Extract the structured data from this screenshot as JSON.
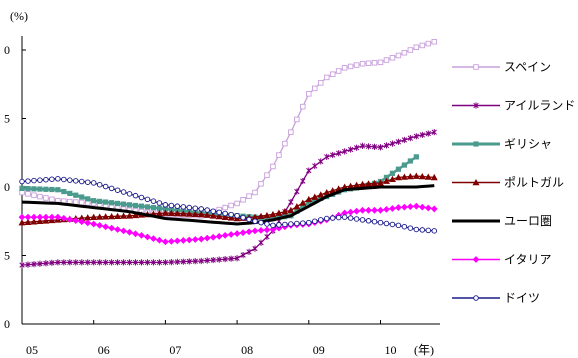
{
  "chart_data": {
    "type": "line",
    "y_unit_label": "(%)",
    "x_unit_label": "(年)",
    "x_ticks": [
      "05",
      "06",
      "07",
      "08",
      "09",
      "10"
    ],
    "y_ticks": [
      "0",
      "5",
      "0",
      "5",
      "0"
    ],
    "x_range": [
      2005.0,
      2010.83
    ],
    "ylim": [
      0,
      20
    ],
    "y_tick_values": [
      0,
      5,
      10,
      15,
      20
    ],
    "legend_placement": "right",
    "grid": false,
    "x": [
      2005.0,
      2005.5,
      2006.0,
      2006.5,
      2007.0,
      2007.5,
      2008.0,
      2008.25,
      2008.5,
      2008.75,
      2009.0,
      2009.25,
      2009.5,
      2009.75,
      2010.0,
      2010.25,
      2010.5,
      2010.75
    ],
    "series": [
      {
        "name": "スペイン",
        "color": "#c9a0dc",
        "marker": "square-open",
        "values": [
          9.6,
          9.0,
          8.8,
          8.3,
          8.0,
          7.9,
          8.8,
          9.6,
          11.5,
          14.0,
          16.8,
          18.0,
          18.7,
          19.0,
          19.1,
          19.6,
          20.2,
          20.6
        ]
      },
      {
        "name": "アイルランド",
        "color": "#800080",
        "marker": "asterisk",
        "values": [
          4.3,
          4.5,
          4.5,
          4.5,
          4.5,
          4.6,
          4.8,
          5.5,
          6.8,
          8.9,
          11.2,
          12.2,
          12.6,
          13.0,
          12.9,
          13.3,
          13.7,
          14.0
        ]
      },
      {
        "name": "ギリシャ",
        "color": "#4a9a8e",
        "marker": "square-filled",
        "values": [
          9.9,
          9.8,
          9.0,
          8.7,
          8.4,
          8.1,
          7.9,
          7.8,
          7.7,
          7.9,
          8.9,
          9.3,
          9.8,
          10.0,
          10.4,
          11.3,
          12.2,
          null
        ]
      },
      {
        "name": "ポルトガル",
        "color": "#800000",
        "marker": "triangle",
        "values": [
          7.4,
          7.6,
          7.8,
          7.9,
          8.1,
          8.0,
          7.7,
          7.8,
          8.0,
          8.3,
          9.1,
          9.6,
          10.0,
          10.2,
          10.3,
          10.7,
          10.8,
          10.7
        ]
      },
      {
        "name": "ユーロ圏",
        "color": "#000000",
        "marker": "none",
        "values": [
          8.9,
          8.8,
          8.5,
          8.2,
          7.7,
          7.5,
          7.3,
          7.4,
          7.6,
          7.9,
          8.6,
          9.3,
          9.8,
          9.9,
          10.0,
          10.0,
          10.0,
          10.1
        ]
      },
      {
        "name": "イタリア",
        "color": "#ff00ff",
        "marker": "diamond",
        "values": [
          7.8,
          7.8,
          7.3,
          6.7,
          6.0,
          6.2,
          6.6,
          6.8,
          6.9,
          7.2,
          7.3,
          7.6,
          8.1,
          8.3,
          8.3,
          8.5,
          8.6,
          8.4
        ]
      },
      {
        "name": "ドイツ",
        "color": "#1a1a8c",
        "marker": "circle-open",
        "values": [
          10.4,
          10.6,
          10.3,
          9.5,
          8.7,
          8.4,
          7.9,
          7.5,
          7.2,
          7.3,
          7.4,
          7.7,
          7.8,
          7.6,
          7.4,
          7.2,
          6.9,
          6.8
        ]
      }
    ]
  }
}
